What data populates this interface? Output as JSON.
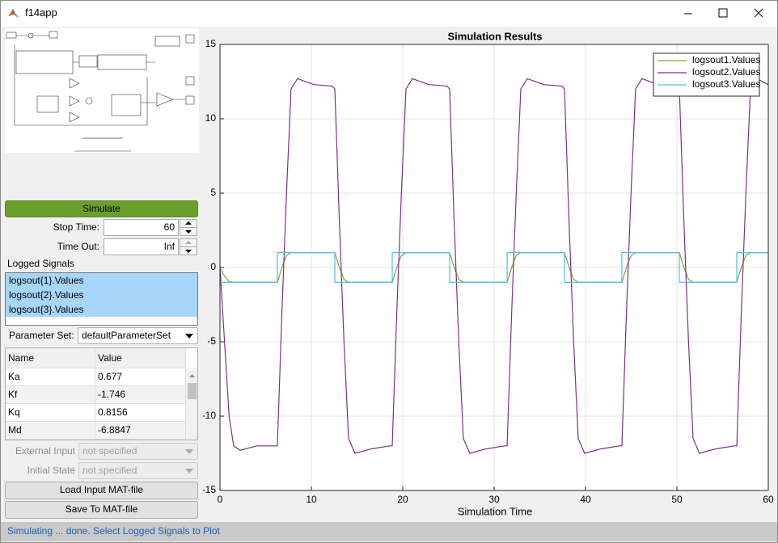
{
  "window": {
    "title": "f14app"
  },
  "controls": {
    "simulate": "Simulate",
    "stop_time_label": "Stop Time:",
    "stop_time": "60",
    "time_out_label": "Time Out:",
    "time_out": "Inf",
    "logged_signals_label": "Logged Signals",
    "logged_signals": [
      "logsout{1}.Values",
      "logsout{2}.Values",
      "logsout{3}.Values"
    ],
    "parameter_set_label": "Parameter Set:",
    "parameter_set": "defaultParameterSet",
    "external_input_label": "External Input",
    "external_input": "not specified",
    "initial_state_label": "Initial State",
    "initial_state": "not specified",
    "load_button": "Load Input MAT-file",
    "save_button": "Save To MAT-file"
  },
  "table": {
    "columns": [
      "Name",
      "Value"
    ],
    "rows": [
      [
        "Ka",
        "0.677"
      ],
      [
        "Kf",
        "-1.746"
      ],
      [
        "Kq",
        "0.8156"
      ],
      [
        "Md",
        "-6.8847"
      ]
    ]
  },
  "status": "Simulating ... done. Select Logged Signals to Plot",
  "chart_data": {
    "type": "line",
    "title": "Simulation Results",
    "xlabel": "Simulation Time",
    "xlim": [
      0,
      60
    ],
    "xticks": [
      0,
      10,
      20,
      30,
      40,
      50,
      60
    ],
    "ylim": [
      -15,
      15
    ],
    "yticks": [
      -15,
      -10,
      -5,
      0,
      5,
      10,
      15
    ],
    "grid": true,
    "legend": "upper right",
    "x": [
      0,
      0.5,
      1,
      1.5,
      2.2,
      4,
      6,
      6.28,
      6.28,
      6.78,
      7.28,
      7.78,
      8.48,
      10.28,
      12.28,
      12.57,
      12.57,
      13.07,
      13.57,
      14.07,
      14.77,
      16.57,
      18.57,
      18.85,
      18.85,
      19.35,
      19.85,
      20.35,
      21.05,
      22.85,
      24.85,
      25.13,
      25.13,
      25.63,
      26.13,
      26.63,
      27.33,
      29.13,
      31.13,
      31.42,
      31.42,
      31.92,
      32.42,
      32.92,
      33.62,
      35.42,
      37.42,
      37.7,
      37.7,
      38.2,
      38.7,
      39.2,
      39.9,
      41.7,
      43.7,
      43.98,
      43.98,
      44.48,
      44.98,
      45.48,
      46.18,
      47.98,
      49.98,
      50.27,
      50.27,
      50.77,
      51.27,
      51.77,
      52.47,
      54.27,
      56.27,
      56.55,
      56.55,
      57.05,
      57.55,
      58.05,
      58.75,
      60
    ],
    "series": [
      {
        "name": "logsout1.Values",
        "color": "#77ac30",
        "values": [
          0,
          -0.6,
          -0.95,
          -1,
          -1,
          -1,
          -1,
          -1,
          -1,
          0,
          0.8,
          1,
          1,
          1,
          1,
          1,
          1,
          0,
          -0.8,
          -1,
          -1,
          -1,
          -1,
          -1,
          -1,
          0,
          0.8,
          1,
          1,
          1,
          1,
          1,
          1,
          0,
          -0.8,
          -1,
          -1,
          -1,
          -1,
          -1,
          -1,
          0,
          0.8,
          1,
          1,
          1,
          1,
          1,
          1,
          0,
          -0.8,
          -1,
          -1,
          -1,
          -1,
          -1,
          -1,
          0,
          0.8,
          1,
          1,
          1,
          1,
          1,
          1,
          0,
          -0.8,
          -1,
          -1,
          -1,
          -1,
          -1,
          -1,
          0,
          0.8,
          1,
          1,
          1
        ]
      },
      {
        "name": "logsout2.Values",
        "color": "#7e2f8e",
        "values": [
          0,
          -5,
          -10,
          -12,
          -12.3,
          -12,
          -12,
          -12,
          -12,
          -3,
          5,
          12,
          12.7,
          12.3,
          12.2,
          12,
          12,
          3,
          -5,
          -11.5,
          -12.5,
          -12.2,
          -12,
          -12,
          -12,
          -3,
          5,
          12,
          12.7,
          12.3,
          12.2,
          12,
          12,
          3,
          -5,
          -11.5,
          -12.5,
          -12.2,
          -12,
          -12,
          -12,
          -3,
          5,
          12,
          12.7,
          12.3,
          12.2,
          12,
          12,
          3,
          -5,
          -11.5,
          -12.5,
          -12.2,
          -12,
          -12,
          -12,
          -3,
          5,
          12,
          12.7,
          12.3,
          12.2,
          12,
          12,
          3,
          -5,
          -11.5,
          -12.5,
          -12.2,
          -12,
          -12,
          -12,
          -3,
          5,
          12,
          12.7,
          12.3
        ]
      },
      {
        "name": "logsout3.Values",
        "color": "#4dbeee",
        "values": [
          -1,
          -1,
          -1,
          -1,
          -1,
          -1,
          -1,
          -1,
          1,
          1,
          1,
          1,
          1,
          1,
          1,
          1,
          -1,
          -1,
          -1,
          -1,
          -1,
          -1,
          -1,
          -1,
          1,
          1,
          1,
          1,
          1,
          1,
          1,
          1,
          -1,
          -1,
          -1,
          -1,
          -1,
          -1,
          -1,
          -1,
          1,
          1,
          1,
          1,
          1,
          1,
          1,
          1,
          -1,
          -1,
          -1,
          -1,
          -1,
          -1,
          -1,
          -1,
          1,
          1,
          1,
          1,
          1,
          1,
          1,
          1,
          -1,
          -1,
          -1,
          -1,
          -1,
          -1,
          -1,
          -1,
          1,
          1,
          1,
          1,
          1,
          1
        ]
      }
    ]
  }
}
